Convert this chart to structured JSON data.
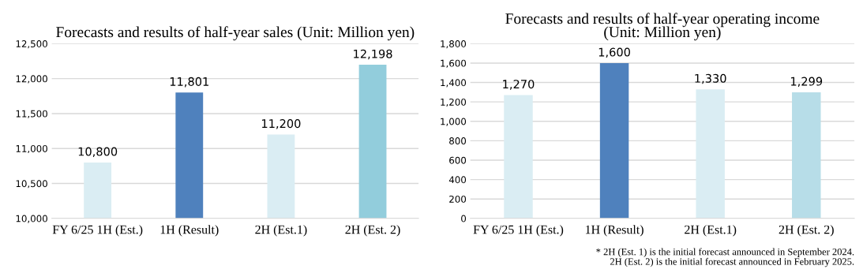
{
  "chart_data": [
    {
      "type": "bar",
      "title": "Forecasts and results of half-year sales (Unit: Million yen)",
      "categories": [
        "FY 6/25 1H (Est.)",
        "1H (Result)",
        "2H (Est.1)",
        "2H (Est. 2)"
      ],
      "values": [
        10800,
        11801,
        11200,
        12198
      ],
      "colors": [
        "#daedf3",
        "#4f81bd",
        "#daedf3",
        "#92cddc"
      ],
      "value_labels": [
        "10,800",
        "11,801",
        "11,200",
        "12,198"
      ],
      "ylim": [
        10000,
        12500
      ],
      "yticks": [
        {
          "value": 10000,
          "label": "10,000"
        },
        {
          "value": 10500,
          "label": "10,500"
        },
        {
          "value": 11000,
          "label": "11,000"
        },
        {
          "value": 11500,
          "label": "11,500"
        },
        {
          "value": 12000,
          "label": "12,000"
        },
        {
          "value": 12500,
          "label": "12,500"
        }
      ],
      "grid": "y"
    },
    {
      "type": "bar",
      "title": "Forecasts and results of half-year operating income\n(Unit: Million yen)",
      "categories": [
        "FY 6/25 1H (Est.)",
        "1H (Result)",
        "2H (Est.1)",
        "2H (Est. 2)"
      ],
      "values": [
        1270,
        1600,
        1330,
        1299
      ],
      "colors": [
        "#daedf3",
        "#4f81bd",
        "#daedf3",
        "#b7dde8"
      ],
      "value_labels": [
        "1,270",
        "1,600",
        "1,330",
        "1,299"
      ],
      "ylim": [
        0,
        1800
      ],
      "yticks": [
        0,
        200,
        400,
        600,
        800,
        {
          "value": 1000,
          "label": "1,000"
        },
        {
          "value": 1200,
          "label": "1,200"
        },
        {
          "value": 1400,
          "label": "1,400"
        },
        {
          "value": 1600,
          "label": "1,600"
        },
        {
          "value": 1800,
          "label": "1,800"
        }
      ],
      "grid": "y",
      "annotations": [
        "* 2H (Est. 1) is the initial forecast announced in September 2024.\n  2H (Est. 2) is the initial forecast announced in February 2025."
      ]
    }
  ]
}
